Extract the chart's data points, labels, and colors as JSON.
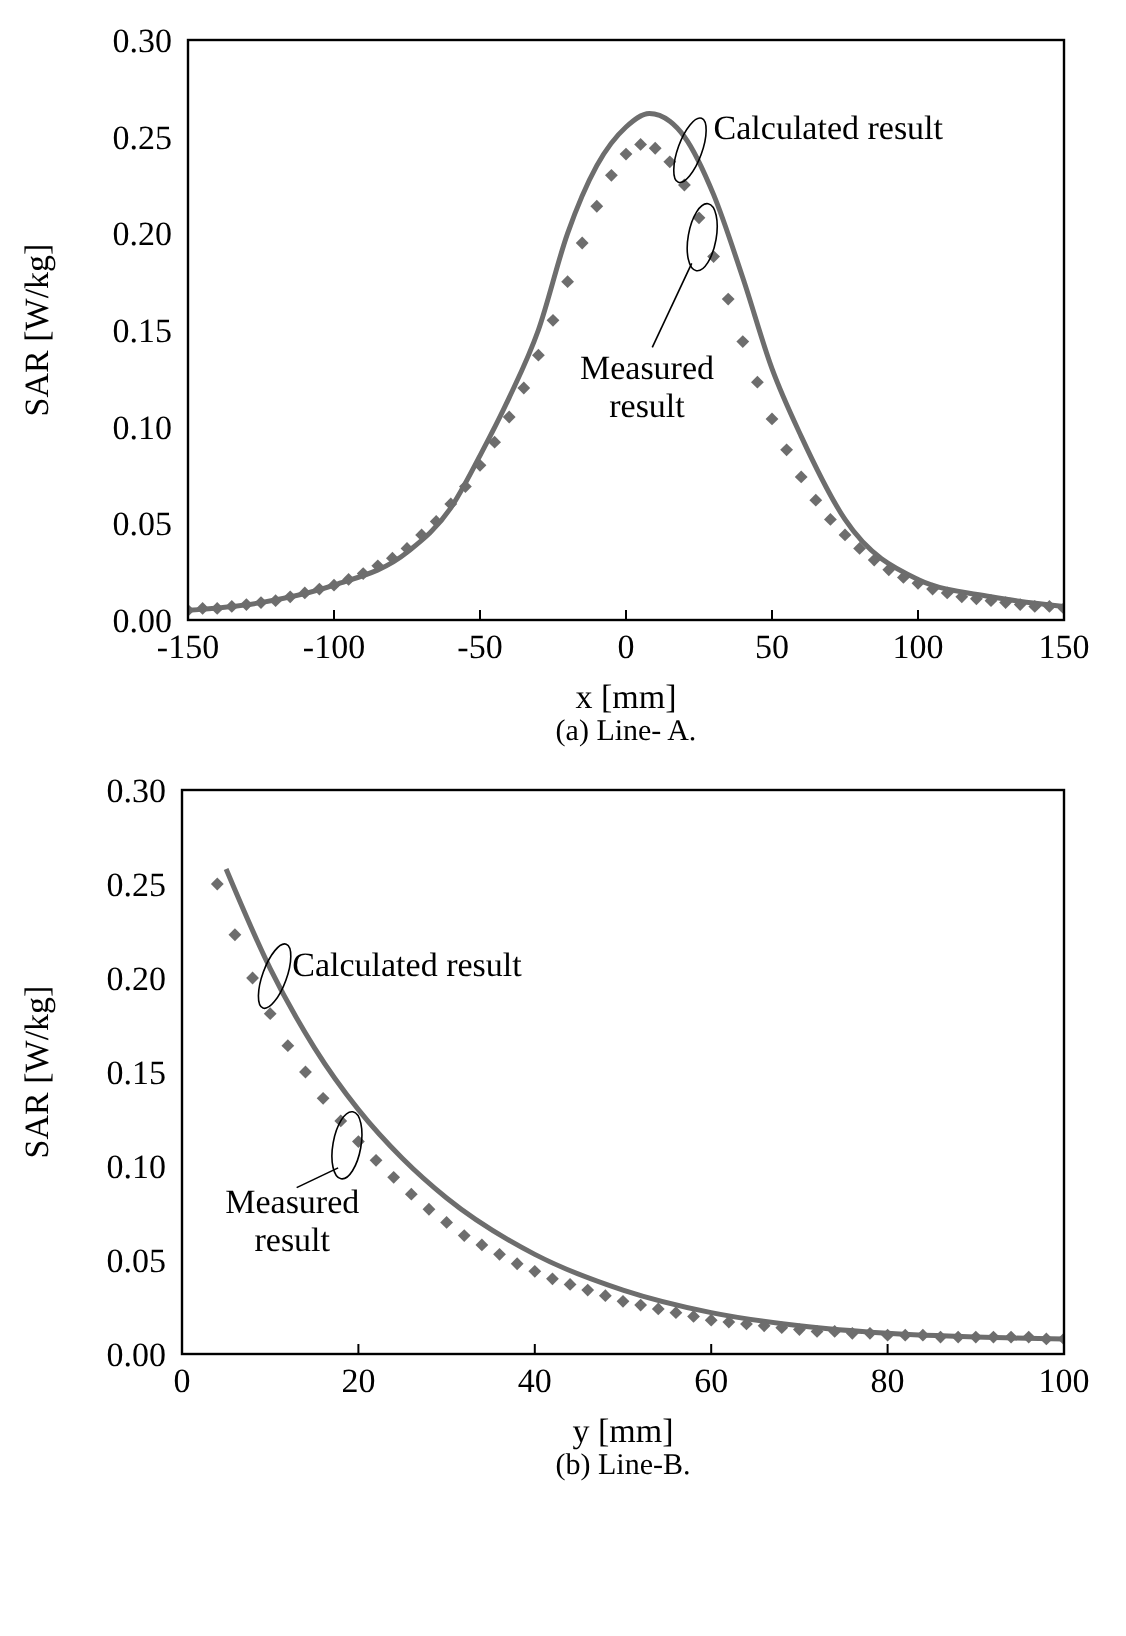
{
  "chart_data": [
    {
      "type": "line",
      "xlabel": "x [mm]",
      "ylabel": "SAR [W/kg]",
      "annotations": [
        "(a) Line- A."
      ],
      "xlim": [
        -150,
        150
      ],
      "xticks": [
        -150,
        -100,
        -50,
        0,
        50,
        100,
        150
      ],
      "ylim": [
        0,
        0.3
      ],
      "yticks": [
        {
          "value": 0,
          "label": "0.00"
        },
        {
          "value": 0.05,
          "label": "0.05"
        },
        {
          "value": 0.1,
          "label": "0.10"
        },
        {
          "value": 0.15,
          "label": "0.15"
        },
        {
          "value": 0.2,
          "label": "0.20"
        },
        {
          "value": 0.25,
          "label": "0.25"
        },
        {
          "value": 0.3,
          "label": "0.30"
        }
      ],
      "grid": false,
      "legend": false,
      "series": [
        {
          "name": "Calculated result",
          "color": "#6d6d6d",
          "marker": "none",
          "line_style": "solid",
          "x": [
            -150,
            -125,
            -100,
            -75,
            -60,
            -50,
            -40,
            -30,
            -20,
            -10,
            0,
            8,
            15,
            20,
            30,
            40,
            50,
            60,
            75,
            100,
            125,
            150
          ],
          "values": [
            0.005,
            0.009,
            0.018,
            0.035,
            0.058,
            0.085,
            0.115,
            0.15,
            0.2,
            0.235,
            0.255,
            0.262,
            0.258,
            0.25,
            0.22,
            0.177,
            0.13,
            0.095,
            0.052,
            0.021,
            0.012,
            0.007
          ]
        },
        {
          "name": "Measured result",
          "type": "scatter",
          "color": "#6d6d6d",
          "marker": "diamond",
          "x": [
            -150,
            -145,
            -140,
            -135,
            -130,
            -125,
            -120,
            -115,
            -110,
            -105,
            -100,
            -95,
            -90,
            -85,
            -80,
            -75,
            -70,
            -65,
            -60,
            -55,
            -50,
            -45,
            -40,
            -35,
            -30,
            -25,
            -20,
            -15,
            -10,
            -5,
            0,
            5,
            10,
            15,
            20,
            25,
            30,
            35,
            40,
            45,
            50,
            55,
            60,
            65,
            70,
            75,
            80,
            85,
            90,
            95,
            100,
            105,
            110,
            115,
            120,
            125,
            130,
            135,
            140,
            145,
            150
          ],
          "values": [
            0.005,
            0.006,
            0.006,
            0.007,
            0.008,
            0.009,
            0.01,
            0.012,
            0.014,
            0.016,
            0.018,
            0.021,
            0.024,
            0.028,
            0.032,
            0.037,
            0.044,
            0.051,
            0.06,
            0.069,
            0.08,
            0.092,
            0.105,
            0.12,
            0.137,
            0.155,
            0.175,
            0.195,
            0.214,
            0.23,
            0.241,
            0.246,
            0.244,
            0.237,
            0.225,
            0.208,
            0.188,
            0.166,
            0.144,
            0.123,
            0.104,
            0.088,
            0.074,
            0.062,
            0.052,
            0.044,
            0.037,
            0.031,
            0.026,
            0.022,
            0.019,
            0.016,
            0.014,
            0.012,
            0.011,
            0.01,
            0.009,
            0.008,
            0.007,
            0.007,
            0.006
          ]
        }
      ]
    },
    {
      "type": "line",
      "xlabel": "y [mm]",
      "ylabel": "SAR [W/kg]",
      "annotations": [
        "(b) Line-B."
      ],
      "xlim": [
        0,
        100
      ],
      "xticks": [
        0,
        20,
        40,
        60,
        80,
        100
      ],
      "ylim": [
        0,
        0.3
      ],
      "yticks": [
        {
          "value": 0,
          "label": "0.00"
        },
        {
          "value": 0.05,
          "label": "0.05"
        },
        {
          "value": 0.1,
          "label": "0.10"
        },
        {
          "value": 0.15,
          "label": "0.15"
        },
        {
          "value": 0.2,
          "label": "0.20"
        },
        {
          "value": 0.25,
          "label": "0.25"
        },
        {
          "value": 0.3,
          "label": "0.30"
        }
      ],
      "grid": false,
      "legend": false,
      "series": [
        {
          "name": "Calculated result",
          "color": "#6d6d6d",
          "marker": "none",
          "line_style": "solid",
          "x": [
            5,
            10,
            15,
            20,
            25,
            30,
            40,
            50,
            60,
            70,
            80,
            90,
            100
          ],
          "values": [
            0.258,
            0.205,
            0.163,
            0.13,
            0.104,
            0.083,
            0.053,
            0.034,
            0.022,
            0.015,
            0.011,
            0.009,
            0.008
          ]
        },
        {
          "name": "Measured result",
          "type": "scatter",
          "color": "#6d6d6d",
          "marker": "diamond",
          "x": [
            4,
            6,
            8,
            10,
            12,
            14,
            16,
            18,
            20,
            22,
            24,
            26,
            28,
            30,
            32,
            34,
            36,
            38,
            40,
            42,
            44,
            46,
            48,
            50,
            52,
            54,
            56,
            58,
            60,
            62,
            64,
            66,
            68,
            70,
            72,
            74,
            76,
            78,
            80,
            82,
            84,
            86,
            88,
            90,
            92,
            94,
            96,
            98,
            100
          ],
          "values": [
            0.25,
            0.223,
            0.2,
            0.181,
            0.164,
            0.15,
            0.136,
            0.124,
            0.113,
            0.103,
            0.094,
            0.085,
            0.077,
            0.07,
            0.063,
            0.058,
            0.053,
            0.048,
            0.044,
            0.04,
            0.037,
            0.034,
            0.031,
            0.028,
            0.026,
            0.024,
            0.022,
            0.02,
            0.018,
            0.017,
            0.016,
            0.015,
            0.014,
            0.013,
            0.012,
            0.012,
            0.011,
            0.011,
            0.01,
            0.01,
            0.01,
            0.009,
            0.009,
            0.009,
            0.009,
            0.009,
            0.009,
            0.008,
            0.008
          ]
        }
      ]
    }
  ]
}
